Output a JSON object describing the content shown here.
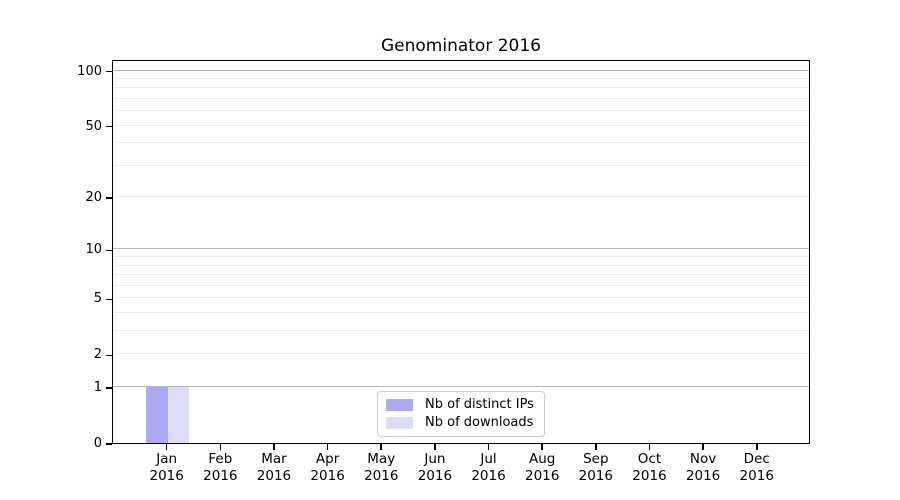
{
  "title": "Genominator 2016",
  "legend": {
    "position": "lower center",
    "items": [
      {
        "label": "Nb of distinct IPs",
        "color": "#a9a9f4"
      },
      {
        "label": "Nb of downloads",
        "color": "#dcdcf8"
      }
    ]
  },
  "chart_data": {
    "type": "bar",
    "title": "Genominator 2016",
    "categories": [
      "Jan 2016",
      "Feb 2016",
      "Mar 2016",
      "Apr 2016",
      "May 2016",
      "Jun 2016",
      "Jul 2016",
      "Aug 2016",
      "Sep 2016",
      "Oct 2016",
      "Nov 2016",
      "Dec 2016"
    ],
    "series": [
      {
        "name": "Nb of distinct IPs",
        "color": "#a9a9f4",
        "values": [
          1,
          0,
          0,
          0,
          0,
          0,
          0,
          0,
          0,
          0,
          0,
          0
        ]
      },
      {
        "name": "Nb of downloads",
        "color": "#dcdcf8",
        "values": [
          1,
          0,
          0,
          0,
          0,
          0,
          0,
          0,
          0,
          0,
          0,
          0
        ]
      }
    ],
    "xlabel": "",
    "ylabel": "",
    "yscale": "log1p",
    "ylim": [
      0,
      115.5
    ],
    "y_ticks": [
      0,
      1,
      2,
      5,
      10,
      20,
      50,
      100
    ],
    "y_major_gridlines": [
      1,
      10,
      100
    ],
    "y_minor_gridlines": [
      2,
      3,
      4,
      5,
      6,
      7,
      8,
      9,
      20,
      30,
      40,
      50,
      60,
      70,
      80,
      90
    ],
    "grid": "horizontal",
    "legend_position": "lower center"
  },
  "colors": {
    "spine": "#000000",
    "major_grid": "#b8b8b8",
    "minor_grid": "#ebebeb",
    "legend_border": "#cccccc",
    "background": "#ffffff"
  }
}
